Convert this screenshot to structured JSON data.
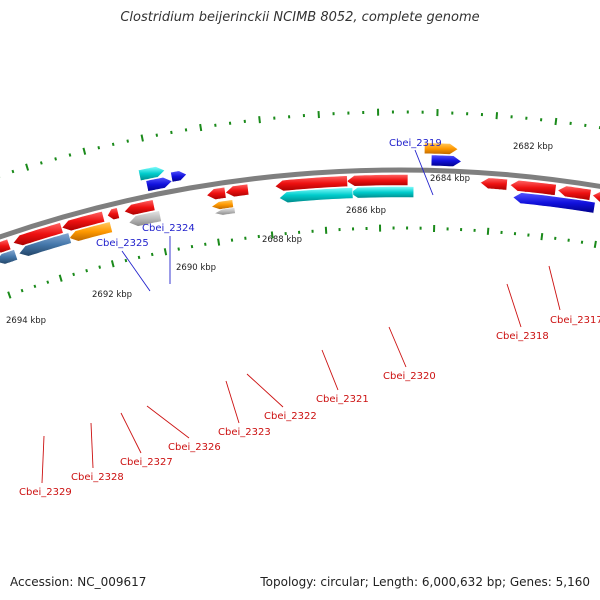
{
  "title": "Clostridium beijerinckii NCIMB 8052, complete genome",
  "footer": {
    "accession": "Accession: NC_009617",
    "summary": "Topology: circular; Length: 6,000,632 bp; Genes: 5,160"
  },
  "colors": {
    "backbone": "#7f7f7f",
    "tick_outer": "#1a8a1a",
    "tick_inner": "#1a8a1a",
    "red": "#ee1111",
    "blue": "#1111dd",
    "orange": "#ff9900",
    "cyan": "#00cccc",
    "steelblue": "#4477aa",
    "gray": "#bbbbbb",
    "label_forward": "#2222cc",
    "label_reverse": "#cc1111"
  },
  "scale_labels": [
    "2682 kbp",
    "2684 kbp",
    "2686 kbp",
    "2688 kbp",
    "2690 kbp",
    "2692 kbp",
    "2694 kbp"
  ],
  "gene_labels": [
    {
      "text": "Cbei_2319",
      "strand": "forward"
    },
    {
      "text": "Cbei_2324",
      "strand": "forward"
    },
    {
      "text": "Cbei_2325",
      "strand": "forward"
    },
    {
      "text": "Cbei_2317",
      "strand": "reverse"
    },
    {
      "text": "Cbei_2318",
      "strand": "reverse"
    },
    {
      "text": "Cbei_2320",
      "strand": "reverse"
    },
    {
      "text": "Cbei_2321",
      "strand": "reverse"
    },
    {
      "text": "Cbei_2322",
      "strand": "reverse"
    },
    {
      "text": "Cbei_2323",
      "strand": "reverse"
    },
    {
      "text": "Cbei_2326",
      "strand": "reverse"
    },
    {
      "text": "Cbei_2327",
      "strand": "reverse"
    },
    {
      "text": "Cbei_2328",
      "strand": "reverse"
    },
    {
      "text": "Cbei_2329",
      "strand": "reverse"
    }
  ]
}
